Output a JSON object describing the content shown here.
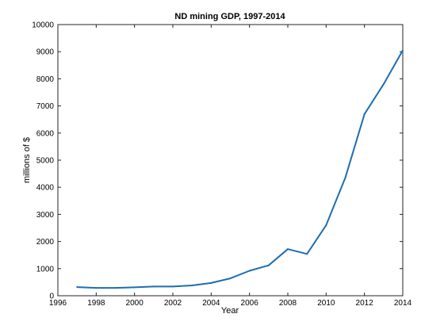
{
  "chart_data": {
    "type": "line",
    "title": "ND mining GDP, 1997-2014",
    "xlabel": "Year",
    "ylabel": "millions of $",
    "xlim": [
      1996,
      2014
    ],
    "ylim": [
      0,
      10000
    ],
    "grid": false,
    "x_ticks": [
      "1996",
      "1998",
      "2000",
      "2002",
      "2004",
      "2006",
      "2008",
      "2010",
      "2012",
      "2014"
    ],
    "y_ticks": [
      "0",
      "1000",
      "2000",
      "3000",
      "4000",
      "5000",
      "6000",
      "7000",
      "8000",
      "9000",
      "10000"
    ],
    "series": [
      {
        "color": "#1f6db1",
        "x": [
          1997,
          1998,
          1999,
          2000,
          2001,
          2002,
          2003,
          2004,
          2005,
          2006,
          2007,
          2008,
          2009,
          2010,
          2011,
          2012,
          2013,
          2014
        ],
        "y": [
          320,
          290,
          290,
          310,
          340,
          340,
          380,
          470,
          640,
          920,
          1120,
          1720,
          1540,
          2600,
          4350,
          6700,
          7800,
          9050
        ]
      }
    ]
  }
}
